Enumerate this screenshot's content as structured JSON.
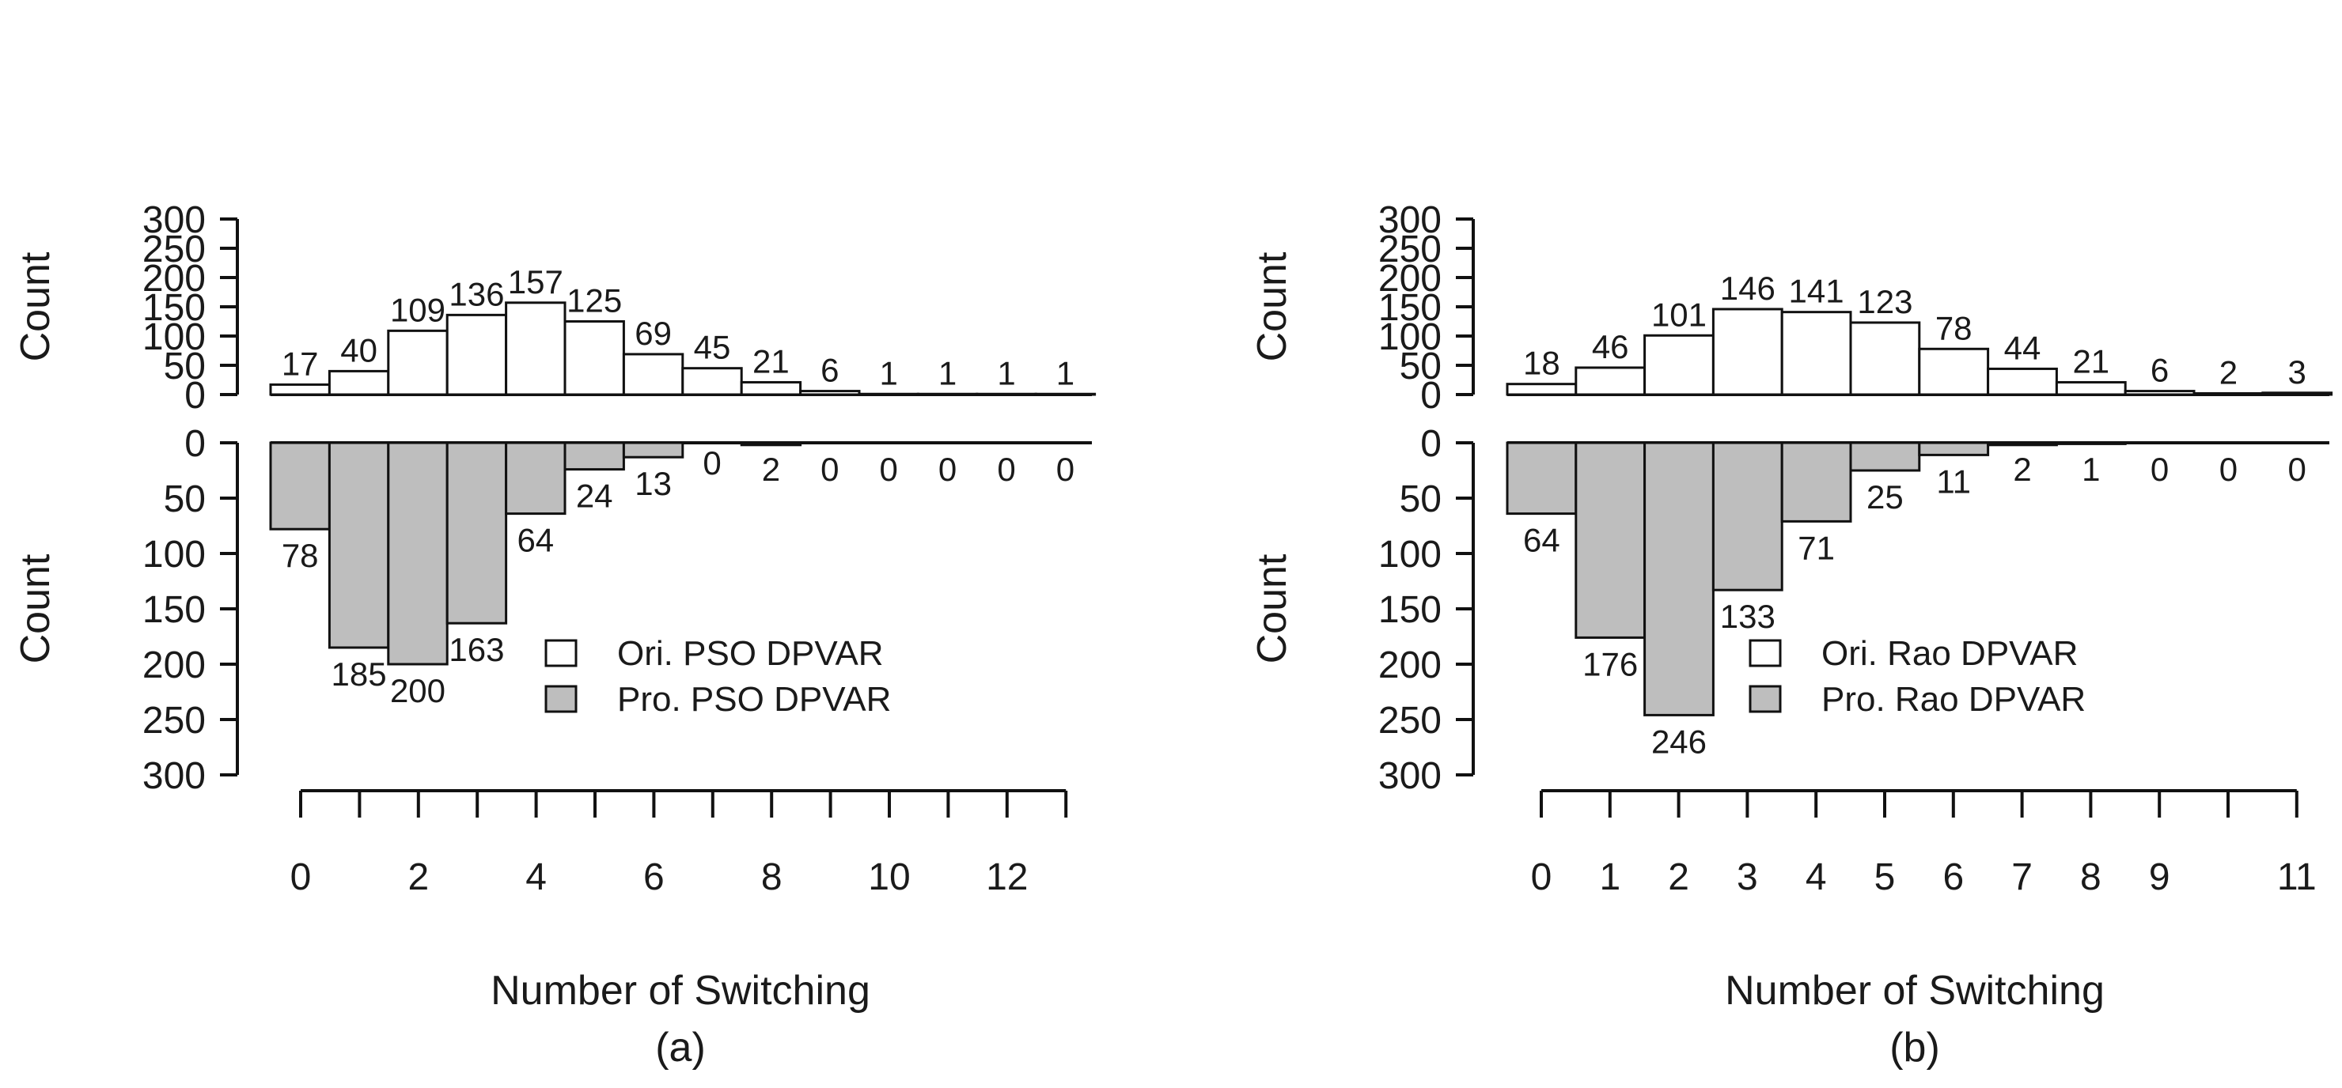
{
  "chart_data": [
    {
      "type": "bar",
      "panel_label": "(a)",
      "xlabel": "Number of Switching",
      "ylabel_top": "Count",
      "ylabel_bottom": "Count",
      "ylim": [
        0,
        300
      ],
      "yticks": [
        "0",
        "50",
        "100",
        "150",
        "200",
        "250",
        "300"
      ],
      "categories": [
        0,
        1,
        2,
        3,
        4,
        5,
        6,
        7,
        8,
        9,
        10,
        11,
        12,
        13
      ],
      "xtick_labels": [
        "0",
        "2",
        "4",
        "6",
        "8",
        "10",
        "12"
      ],
      "series": [
        {
          "name": "Ori. PSO DPVAR",
          "position": "top",
          "fill": "#ffffff",
          "values": [
            17,
            40,
            109,
            136,
            157,
            125,
            69,
            45,
            21,
            6,
            1,
            1,
            1,
            1
          ]
        },
        {
          "name": "Pro. PSO DPVAR",
          "position": "bottom",
          "fill": "#bebebe",
          "values": [
            78,
            185,
            200,
            163,
            64,
            24,
            13,
            0,
            2,
            0,
            0,
            0,
            0,
            0
          ]
        }
      ],
      "legend": [
        "Ori. PSO DPVAR",
        "Pro. PSO DPVAR"
      ]
    },
    {
      "type": "bar",
      "panel_label": "(b)",
      "xlabel": "Number of Switching",
      "ylabel_top": "Count",
      "ylabel_bottom": "Count",
      "ylim": [
        0,
        300
      ],
      "yticks": [
        "0",
        "50",
        "100",
        "150",
        "200",
        "250",
        "300"
      ],
      "categories": [
        0,
        1,
        2,
        3,
        4,
        5,
        6,
        7,
        8,
        9,
        10,
        11
      ],
      "xtick_labels": [
        "0",
        "1",
        "2",
        "3",
        "4",
        "5",
        "6",
        "7",
        "8",
        "9",
        "11"
      ],
      "series": [
        {
          "name": "Ori. Rao DPVAR",
          "position": "top",
          "fill": "#ffffff",
          "values": [
            18,
            46,
            101,
            146,
            141,
            123,
            78,
            44,
            21,
            6,
            2,
            3
          ]
        },
        {
          "name": "Pro. Rao DPVAR",
          "position": "bottom",
          "fill": "#bebebe",
          "values": [
            64,
            176,
            246,
            133,
            71,
            25,
            11,
            2,
            1,
            0,
            0,
            0
          ]
        }
      ],
      "legend": [
        "Ori. Rao DPVAR",
        "Pro. Rao DPVAR"
      ]
    }
  ]
}
